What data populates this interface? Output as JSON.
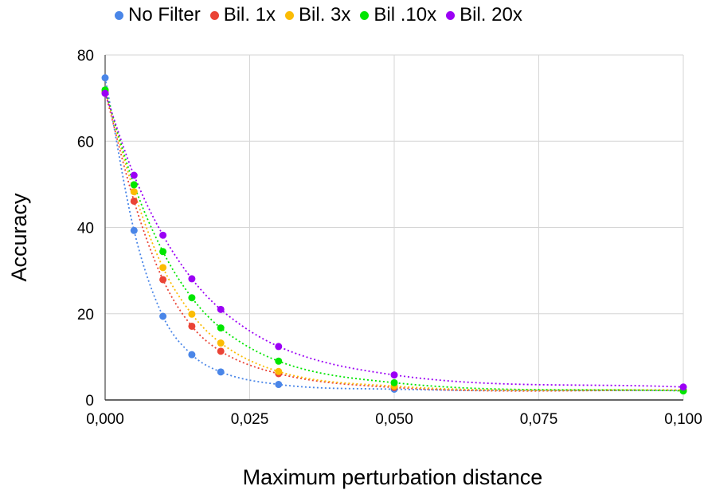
{
  "chart_data": {
    "type": "scatter",
    "title": "",
    "xlabel": "Maximum perturbation distance",
    "ylabel": "Accuracy",
    "xlim": [
      0,
      0.1
    ],
    "ylim": [
      0,
      80
    ],
    "x_ticks": [
      "0,000",
      "0,025",
      "0,050",
      "0,075",
      "0,100"
    ],
    "y_ticks": [
      "0",
      "20",
      "40",
      "60",
      "80"
    ],
    "grid": true,
    "legend_position": "top",
    "trendline": "dotted smooth",
    "x": [
      0,
      0.005,
      0.01,
      0.015,
      0.02,
      0.03,
      0.05,
      0.1
    ],
    "series": [
      {
        "name": "No Filter",
        "color": "#4A86E8",
        "values": [
          74.7,
          39.3,
          19.4,
          10.5,
          6.5,
          3.6,
          2.5,
          2.2
        ]
      },
      {
        "name": "Bil. 1x",
        "color": "#EA4335",
        "values": [
          71.4,
          46.1,
          27.9,
          17.1,
          11.3,
          6.1,
          2.9,
          2.2
        ]
      },
      {
        "name": "Bil. 3x",
        "color": "#FBBC04",
        "values": [
          71.8,
          48.3,
          30.7,
          19.9,
          13.2,
          6.6,
          3.2,
          2.3
        ]
      },
      {
        "name": "Bil .10x",
        "color": "#00E600",
        "values": [
          71.9,
          49.9,
          34.4,
          23.7,
          16.7,
          9.0,
          4.0,
          2.1
        ]
      },
      {
        "name": "Bil. 20x",
        "color": "#9B00F5",
        "values": [
          71.1,
          52.1,
          38.2,
          28.1,
          21.0,
          12.4,
          5.8,
          3.0
        ]
      }
    ]
  }
}
